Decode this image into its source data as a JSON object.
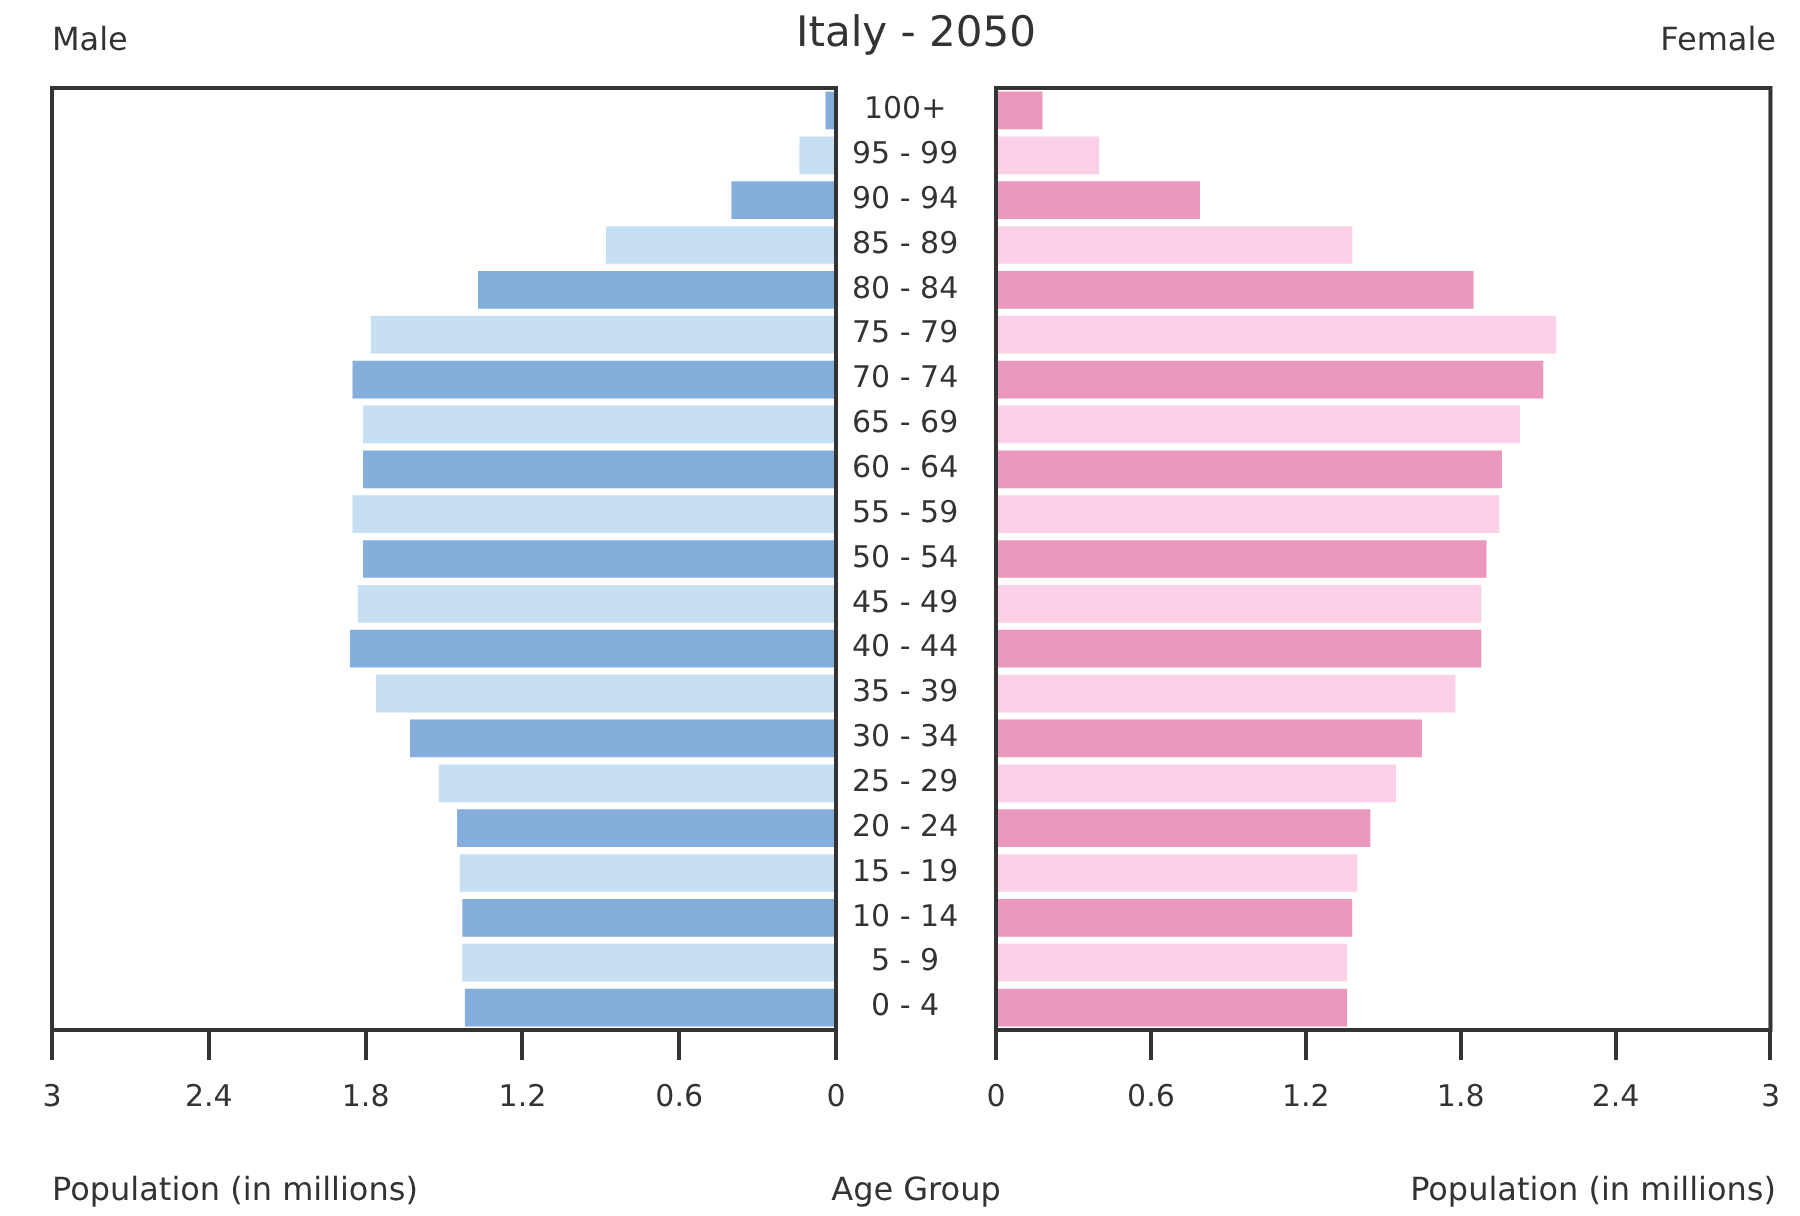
{
  "chart_data": [
    {
      "type": "bar",
      "orientation": "horizontal",
      "title": "Italy - 2050",
      "xlabel": "Population (in millions)",
      "ylabel": "Age Group",
      "categories": [
        "100+",
        "95 - 99",
        "90 - 94",
        "85 - 89",
        "80 - 84",
        "75 - 79",
        "70 - 74",
        "65 - 69",
        "60 - 64",
        "55 - 59",
        "50 - 54",
        "45 - 49",
        "40 - 44",
        "35 - 39",
        "30 - 34",
        "25 - 29",
        "20 - 24",
        "15 - 19",
        "10 - 14",
        "5 - 9",
        "0 - 4"
      ],
      "series": [
        {
          "name": "Male",
          "colors": [
            "#84aedc",
            "#c6dff3",
            "#84aedc",
            "#c6dff3",
            "#84aedc",
            "#c6dff3",
            "#84aedc",
            "#c6dff3",
            "#84aedc",
            "#c6dff3",
            "#84aedc",
            "#c6dff3",
            "#84aedc",
            "#c6dff3",
            "#84aedc",
            "#c6dff3",
            "#84aedc",
            "#c6dff3",
            "#84aedc",
            "#c6dff3",
            "#84aedc"
          ],
          "values": [
            0.04,
            0.14,
            0.4,
            0.88,
            1.37,
            1.78,
            1.85,
            1.81,
            1.81,
            1.85,
            1.81,
            1.83,
            1.86,
            1.76,
            1.63,
            1.52,
            1.45,
            1.44,
            1.43,
            1.43,
            1.42
          ]
        }
      ],
      "xlim": [
        3,
        0
      ],
      "xticks": [
        3,
        2.4,
        1.8,
        1.2,
        0.6,
        0
      ]
    },
    {
      "type": "bar",
      "orientation": "horizontal",
      "xlabel": "Population (in millions)",
      "series": [
        {
          "name": "Female",
          "colors": [
            "#ea98bd",
            "#fcd0e6",
            "#ea98bd",
            "#fcd0e6",
            "#ea98bd",
            "#fcd0e6",
            "#ea98bd",
            "#fcd0e6",
            "#ea98bd",
            "#fcd0e6",
            "#ea98bd",
            "#fcd0e6",
            "#ea98bd",
            "#fcd0e6",
            "#ea98bd",
            "#fcd0e6",
            "#ea98bd",
            "#fcd0e6",
            "#ea98bd",
            "#fcd0e6",
            "#ea98bd"
          ],
          "values": [
            0.18,
            0.4,
            0.79,
            1.38,
            1.85,
            2.17,
            2.12,
            2.03,
            1.96,
            1.95,
            1.9,
            1.88,
            1.88,
            1.78,
            1.65,
            1.55,
            1.45,
            1.4,
            1.38,
            1.36,
            1.36
          ]
        }
      ],
      "xlim": [
        0,
        3
      ],
      "xticks": [
        0,
        0.6,
        1.2,
        1.8,
        2.4,
        3
      ],
      "tick_labels": "x"
    }
  ]
}
